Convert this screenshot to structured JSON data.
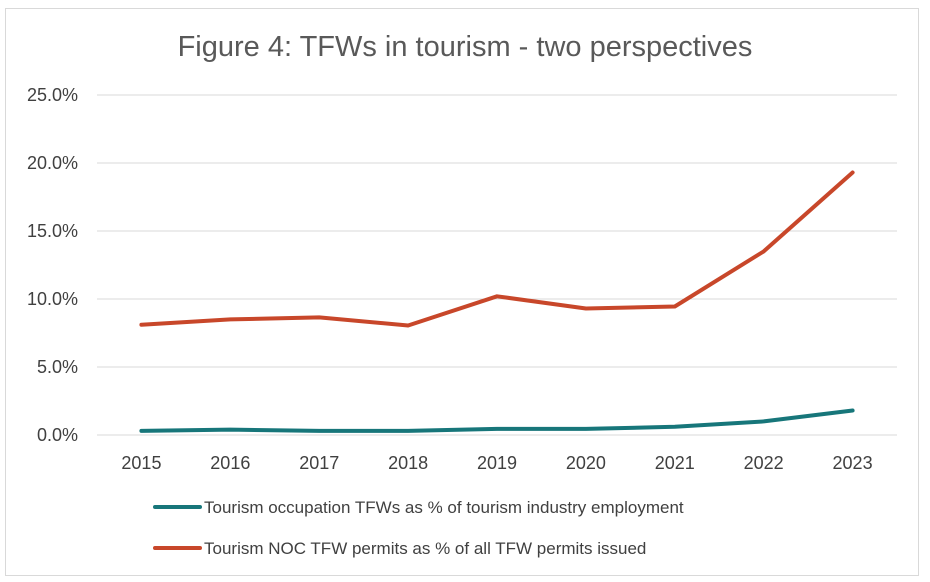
{
  "chart_data": {
    "type": "line",
    "title": "Figure 4: TFWs in tourism - two perspectives",
    "xlabel": "",
    "ylabel": "",
    "categories": [
      "2015",
      "2016",
      "2017",
      "2018",
      "2019",
      "2020",
      "2021",
      "2022",
      "2023"
    ],
    "ylim": [
      0,
      25
    ],
    "y_ticks": [
      "0.0%",
      "5.0%",
      "10.0%",
      "15.0%",
      "20.0%",
      "25.0%"
    ],
    "grid": true,
    "legend_position": "bottom",
    "series": [
      {
        "name": "Tourism occupation TFWs as % of tourism industry employment",
        "color": "#17767a",
        "values": [
          0.3,
          0.4,
          0.3,
          0.3,
          0.45,
          0.45,
          0.6,
          1.0,
          1.8
        ]
      },
      {
        "name": "Tourism NOC TFW permits as % of all TFW permits issued",
        "color": "#c8472a",
        "values": [
          8.1,
          8.5,
          8.65,
          8.05,
          10.2,
          9.3,
          9.45,
          13.5,
          19.3
        ]
      }
    ]
  }
}
